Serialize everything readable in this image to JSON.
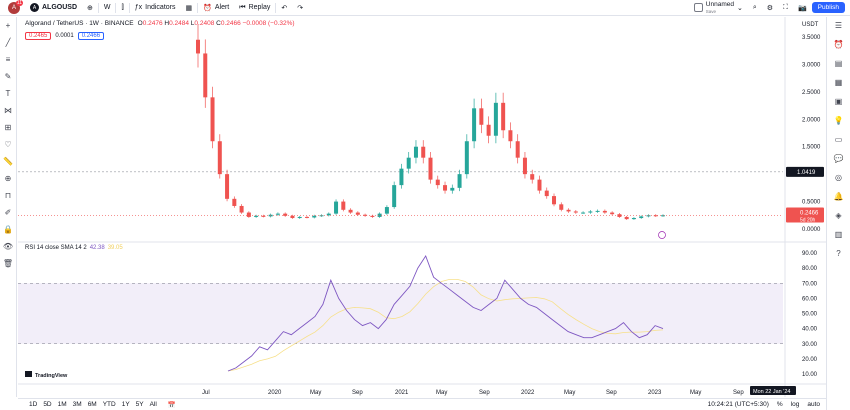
{
  "toolbar": {
    "avatar_letter": "A",
    "avatar_badge": "11",
    "symbol": "ALGOUSD",
    "interval": "W",
    "indicators": "Indicators",
    "alert": "Alert",
    "replay": "Replay",
    "layout_name": "Unnamed",
    "layout_status": "Save",
    "publish": "Publish"
  },
  "legend": {
    "title": "Algorand / TetherUS · 1W · BINANCE",
    "o": "O",
    "o_val": "0.2476",
    "h": "H",
    "h_val": "0.2484",
    "l": "L",
    "l_val": "0.2408",
    "c": "C",
    "c_val": "0.2466",
    "chg": "−0.0008 (−0.32%)",
    "sell": "0.2465",
    "spread": "0.0001",
    "buy": "0.2466"
  },
  "rsi": {
    "label": "RSI 14 close SMA 14 2",
    "value1": "42.38",
    "value2": "39.05"
  },
  "price_axis": {
    "currency": "USDT",
    "labels": [
      "3.5000",
      "3.0000",
      "2.5000",
      "2.0000",
      "1.5000",
      "1.0000",
      "0.5000",
      "0.0000"
    ],
    "crosshair_value": "1.0419",
    "last_price": "0.2466",
    "countdown": "5d 20h"
  },
  "rsi_axis": {
    "labels": [
      "90.00",
      "80.00",
      "70.00",
      "60.00",
      "50.00",
      "40.00",
      "30.00",
      "20.00",
      "10.00"
    ]
  },
  "time_axis": {
    "labels": [
      "Jul",
      "2020",
      "May",
      "Sep",
      "2021",
      "May",
      "Sep",
      "2022",
      "May",
      "Sep",
      "2023",
      "May",
      "Sep"
    ],
    "crosshair_date": "Mon 22 Jan '24"
  },
  "watermark": "TradingView",
  "bottom": {
    "ranges": [
      "1D",
      "5D",
      "1M",
      "3M",
      "6M",
      "YTD",
      "1Y",
      "5Y",
      "All"
    ],
    "time": "10:24:21 (UTC+5:30)",
    "pct": "%",
    "log": "log",
    "auto": "auto"
  },
  "colors": {
    "up": "#26a69a",
    "down": "#ef5350",
    "rsi_line": "#7e57c2",
    "rsi_ma": "#f7e08a",
    "rsi_band": "#7e57c2",
    "accent": "#2962ff"
  },
  "chart_data": {
    "type": "candlestick",
    "title": "Algorand / TetherUS · 1W · BINANCE",
    "ylim": [
      0,
      3.5
    ],
    "series": [
      {
        "name": "ALGOUSDT",
        "approx_close": [
          3.2,
          2.4,
          1.6,
          1.0,
          0.55,
          0.42,
          0.3,
          0.22,
          0.24,
          0.23,
          0.26,
          0.28,
          0.24,
          0.2,
          0.22,
          0.21,
          0.24,
          0.25,
          0.28,
          0.5,
          0.35,
          0.3,
          0.26,
          0.24,
          0.22,
          0.28,
          0.4,
          0.8,
          1.1,
          1.3,
          1.5,
          1.3,
          0.9,
          0.8,
          0.7,
          0.75,
          1.0,
          1.6,
          2.2,
          1.9,
          1.7,
          2.3,
          1.8,
          1.6,
          1.3,
          1.0,
          0.9,
          0.7,
          0.6,
          0.45,
          0.35,
          0.32,
          0.3,
          0.3,
          0.32,
          0.33,
          0.3,
          0.27,
          0.22,
          0.18,
          0.2,
          0.23,
          0.25,
          0.24,
          0.25
        ]
      }
    ],
    "rsi": {
      "name": "RSI 14",
      "overbought": 70,
      "oversold": 30,
      "ylim": [
        10,
        90
      ]
    }
  }
}
